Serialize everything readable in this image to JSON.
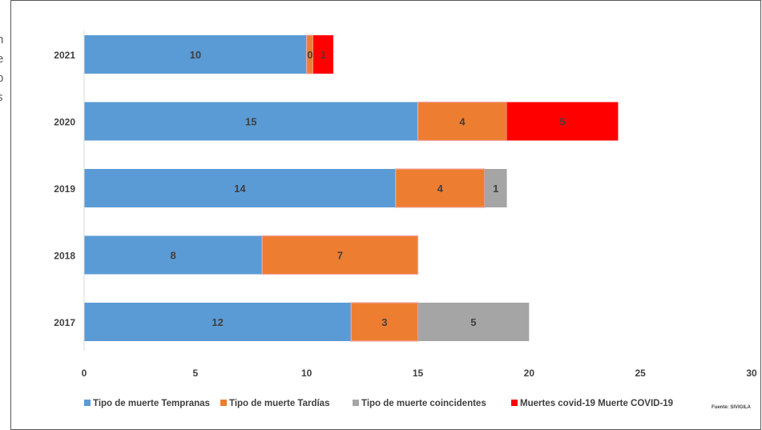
{
  "chart_data": {
    "type": "bar",
    "orientation": "horizontal",
    "stacked": true,
    "title": "",
    "xlabel": "",
    "ylabel": "",
    "categories": [
      "2021",
      "2020",
      "2019",
      "2018",
      "2017"
    ],
    "series": [
      {
        "name": "Tipo de muerte Tempranas",
        "color": "#5B9BD5",
        "values": [
          10,
          15,
          14,
          8,
          12
        ]
      },
      {
        "name": "Tipo de muerte Tardías",
        "color": "#ED7D31",
        "values": [
          0.3,
          4,
          4,
          7,
          3
        ]
      },
      {
        "name": "Tipo de muerte  coincidentes",
        "color": "#A5A5A5",
        "values": [
          0,
          0,
          1,
          0,
          5
        ]
      },
      {
        "name": "Muertes covid-19 Muerte COVID-19",
        "color": "#FF0000",
        "values": [
          0.9,
          5,
          0,
          0,
          0
        ]
      }
    ],
    "data_labels": [
      [
        "10",
        "15",
        "14",
        "8",
        "12"
      ],
      [
        "0",
        "4",
        "4",
        "7",
        "3"
      ],
      [
        "",
        "",
        "1",
        "",
        "5"
      ],
      [
        "1",
        "5",
        "",
        "",
        ""
      ]
    ],
    "xlim": [
      0,
      30
    ],
    "xticks": [
      "0",
      "5",
      "10",
      "15",
      "20",
      "25",
      "30"
    ],
    "grid": false,
    "legend_position": "bottom"
  },
  "source_note": "Fuente: SIVIGILA",
  "side_fragments": [
    "n",
    "e",
    "b",
    "s"
  ]
}
